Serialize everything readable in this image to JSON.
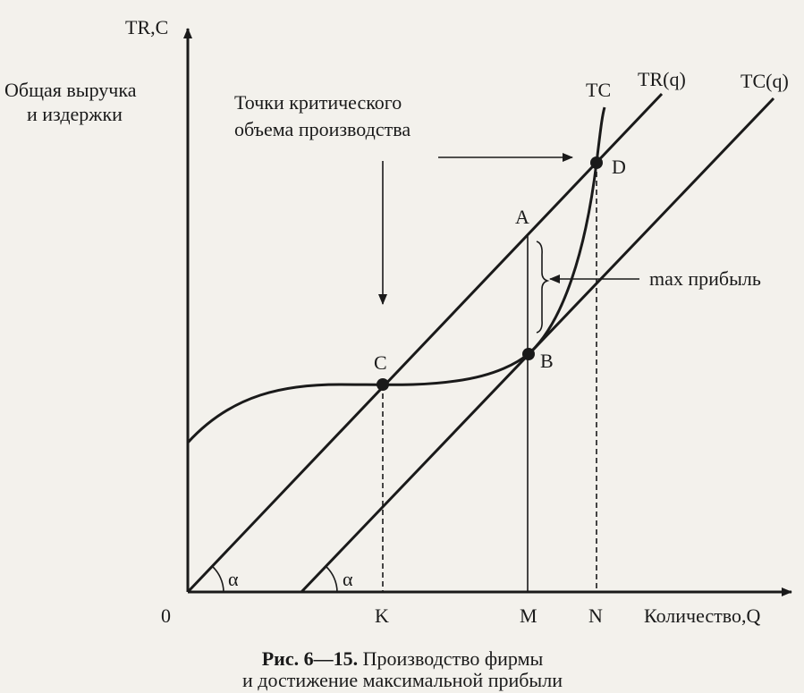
{
  "axes": {
    "y_label": "TR,C",
    "y_title": [
      "Общая выручка",
      "и издержки"
    ],
    "x_label": "Количество,Q",
    "origin": "0",
    "x_marks": [
      "K",
      "M",
      "N"
    ],
    "angles": [
      "α",
      "α"
    ]
  },
  "curves": {
    "tc": "TC",
    "tr_line": "TR(q)",
    "tc_line": "TC(q)"
  },
  "points": {
    "a": "A",
    "b": "B",
    "c": "C",
    "d": "D"
  },
  "annotations": {
    "critical": [
      "Точки критического",
      "объема производства"
    ],
    "max_profit": "max прибыль"
  },
  "caption": {
    "label": "Рис. 6—15.",
    "lines": [
      "Производство фирмы",
      "и достижение максимальной прибыли"
    ]
  }
}
